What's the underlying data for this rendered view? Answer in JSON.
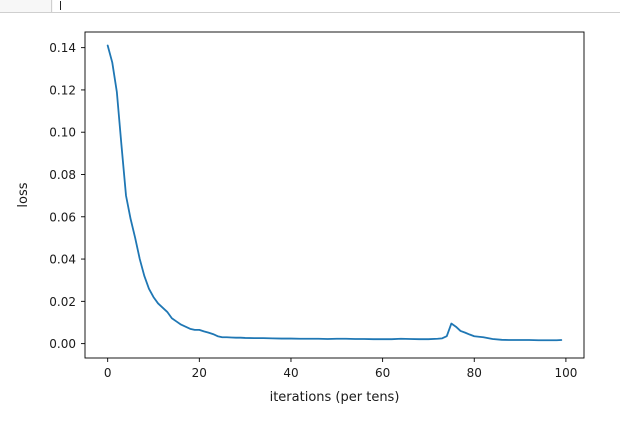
{
  "chart_data": {
    "type": "line",
    "title": "",
    "xlabel": "iterations (per tens)",
    "ylabel": "loss",
    "xlim": [
      -4.95,
      103.95
    ],
    "ylim": [
      -0.0068,
      0.1474
    ],
    "grid": false,
    "legend": "none",
    "xticks": [
      0,
      20,
      40,
      60,
      80,
      100
    ],
    "xtick_labels": [
      "0",
      "20",
      "40",
      "60",
      "80",
      "100"
    ],
    "yticks": [
      0.0,
      0.02,
      0.04,
      0.06,
      0.08,
      0.1,
      0.12,
      0.14
    ],
    "ytick_labels": [
      "0.00",
      "0.02",
      "0.04",
      "0.06",
      "0.08",
      "0.10",
      "0.12",
      "0.14"
    ],
    "line_color": "#1f77b4",
    "series": [
      {
        "x": [
          0,
          1,
          2,
          3,
          4,
          5,
          6,
          7,
          8,
          9,
          10,
          11,
          12,
          13,
          14,
          15,
          16,
          17,
          18,
          19,
          20,
          21,
          22,
          23,
          24,
          25,
          26,
          27,
          28,
          29,
          30,
          32,
          34,
          36,
          38,
          40,
          42,
          44,
          46,
          48,
          50,
          52,
          54,
          56,
          58,
          60,
          62,
          64,
          66,
          68,
          70,
          72,
          73,
          74,
          75,
          76,
          77,
          78,
          79,
          80,
          82,
          84,
          86,
          88,
          90,
          92,
          94,
          96,
          98,
          99
        ],
        "y": [
          0.141,
          0.133,
          0.119,
          0.094,
          0.07,
          0.059,
          0.05,
          0.04,
          0.032,
          0.026,
          0.022,
          0.019,
          0.017,
          0.015,
          0.012,
          0.0105,
          0.009,
          0.008,
          0.007,
          0.0065,
          0.0065,
          0.0058,
          0.0052,
          0.0045,
          0.0035,
          0.003,
          0.003,
          0.0029,
          0.0028,
          0.0028,
          0.0027,
          0.0026,
          0.0026,
          0.0025,
          0.0024,
          0.0024,
          0.0023,
          0.0023,
          0.0023,
          0.0022,
          0.0023,
          0.0023,
          0.0022,
          0.0022,
          0.0021,
          0.0021,
          0.0021,
          0.0023,
          0.0022,
          0.0021,
          0.0021,
          0.0023,
          0.0025,
          0.0035,
          0.0095,
          0.008,
          0.006,
          0.0052,
          0.0043,
          0.0035,
          0.003,
          0.0022,
          0.0018,
          0.0017,
          0.0017,
          0.0017,
          0.0016,
          0.0016,
          0.0016,
          0.0017
        ]
      }
    ]
  }
}
